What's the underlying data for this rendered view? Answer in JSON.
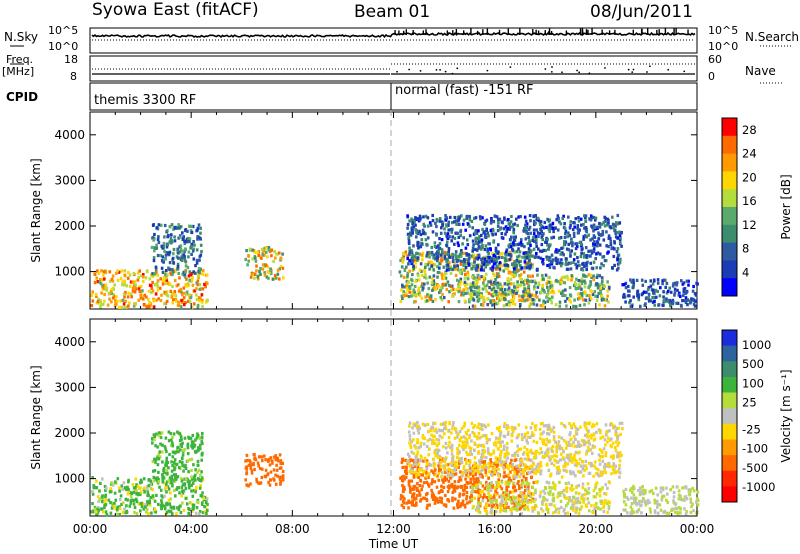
{
  "header": {
    "station": "Syowa East (fitACF)",
    "beam": "Beam 01",
    "date": "08/Jun/2011"
  },
  "summary_panel": {
    "nsky_label": "N.Sky",
    "nsky_ticks": [
      "10^5",
      "10^0"
    ],
    "nsearch_label": "N.Search",
    "nsearch_ticks": [
      "10^5",
      "10^0"
    ],
    "freq_label": "Freq.",
    "freq_unit": "[MHz]",
    "freq_ticks": [
      "18",
      "8"
    ],
    "nave_label": "Nave",
    "nave_ticks": [
      "60",
      "0"
    ],
    "cpid_label": "CPID",
    "cpid_segments": [
      "themis 3300 RF",
      "normal (fast) -151 RF"
    ]
  },
  "colors": {
    "power_scale": [
      "#0000ff",
      "#1a3cb4",
      "#2d5aa0",
      "#3c8c6e",
      "#5aaa6e",
      "#b4dc3c",
      "#ffd700",
      "#ff9b00",
      "#ff6a00",
      "#ff0000"
    ],
    "velocity_scale": [
      "#1a2ddc",
      "#2d64a0",
      "#3c8c6e",
      "#3cb43c",
      "#b4dc3c",
      "#c0c0c0",
      "#ffd700",
      "#ff9b00",
      "#ff6a00",
      "#ff2800",
      "#ff0000"
    ]
  },
  "chart_data": [
    {
      "type": "heatmap",
      "title": "Power",
      "ylabel": "Slant Range [km]",
      "xlabel": "Time UT",
      "x_ticks": [
        "00:00",
        "04:00",
        "08:00",
        "12:00",
        "16:00",
        "20:00",
        "00:00"
      ],
      "y_ticks": [
        "1000",
        "2000",
        "3000",
        "4000"
      ],
      "xlim": [
        0,
        24
      ],
      "ylim": [
        180,
        4500
      ],
      "colorbar_label": "Power [dB]",
      "colorbar_ticks": [
        "28",
        "24",
        "20",
        "16",
        "12",
        "8",
        "4"
      ],
      "colorbar_range": [
        0,
        30
      ],
      "regions": [
        {
          "t0": 0.0,
          "t1": 4.6,
          "r0": 180,
          "r1": 1000,
          "v0": 14,
          "v1": 28
        },
        {
          "t0": 2.4,
          "t1": 4.4,
          "r0": 900,
          "r1": 2000,
          "v0": 4,
          "v1": 14
        },
        {
          "t0": 6.1,
          "t1": 7.6,
          "r0": 800,
          "r1": 1500,
          "v0": 10,
          "v1": 26
        },
        {
          "t0": 12.2,
          "t1": 17.5,
          "r0": 300,
          "r1": 1400,
          "v0": 8,
          "v1": 26
        },
        {
          "t0": 15.0,
          "t1": 20.5,
          "r0": 200,
          "r1": 900,
          "v0": 6,
          "v1": 22
        },
        {
          "t0": 12.5,
          "t1": 21.0,
          "r0": 1000,
          "r1": 2200,
          "v0": 2,
          "v1": 12
        },
        {
          "t0": 21.0,
          "t1": 24.0,
          "r0": 200,
          "r1": 800,
          "v0": 2,
          "v1": 10
        }
      ]
    },
    {
      "type": "heatmap",
      "title": "Velocity",
      "ylabel": "Slant Range [km]",
      "xlabel": "Time UT",
      "x_ticks": [
        "00:00",
        "04:00",
        "08:00",
        "12:00",
        "16:00",
        "20:00",
        "00:00"
      ],
      "y_ticks": [
        "1000",
        "2000",
        "3000",
        "4000"
      ],
      "xlim": [
        0,
        24
      ],
      "ylim": [
        180,
        4500
      ],
      "colorbar_label": "Velocity [m s⁻¹]",
      "colorbar_ticks": [
        "1000",
        "500",
        "100",
        "25",
        "-25",
        "-100",
        "-500",
        "-1000"
      ],
      "regions": [
        {
          "t0": 0.0,
          "t1": 4.6,
          "r0": 180,
          "r1": 1000,
          "v0": -100,
          "v1": 500
        },
        {
          "t0": 2.4,
          "t1": 4.4,
          "r0": 900,
          "r1": 2000,
          "v0": 25,
          "v1": 500
        },
        {
          "t0": 6.1,
          "t1": 7.6,
          "r0": 800,
          "r1": 1500,
          "v0": -500,
          "v1": -100
        },
        {
          "t0": 12.2,
          "t1": 17.5,
          "r0": 300,
          "r1": 1400,
          "v0": -500,
          "v1": -100
        },
        {
          "t0": 15.0,
          "t1": 20.5,
          "r0": 200,
          "r1": 900,
          "v0": -100,
          "v1": 100
        },
        {
          "t0": 12.5,
          "t1": 21.0,
          "r0": 1000,
          "r1": 2200,
          "v0": -100,
          "v1": 25
        },
        {
          "t0": 21.0,
          "t1": 24.0,
          "r0": 200,
          "r1": 800,
          "v0": -25,
          "v1": 100
        }
      ]
    }
  ]
}
